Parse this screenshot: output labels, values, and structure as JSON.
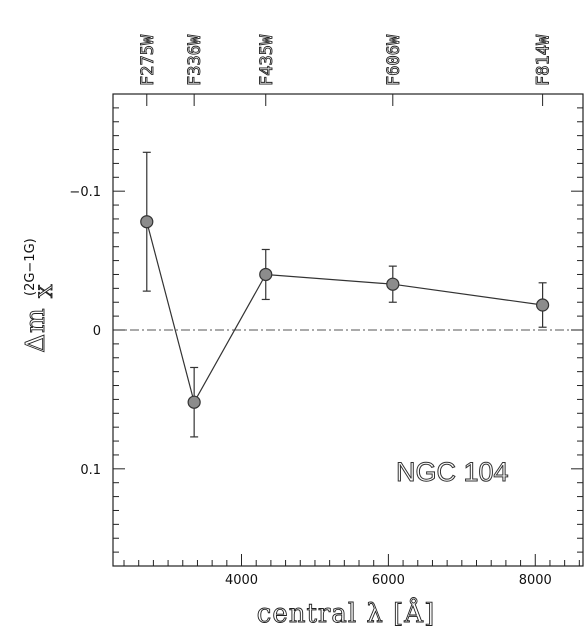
{
  "chart_data": {
    "type": "scatter",
    "title": "",
    "xlabel": "central λ [Å]",
    "ylabel_main": "Δm",
    "ylabel_sub": "X",
    "ylabel_sup": "(2G−1G)",
    "xlim": [
      2250,
      8650
    ],
    "ylim": [
      0.17,
      -0.17
    ],
    "y_inverted": true,
    "x_ticks": [
      4000,
      6000,
      8000
    ],
    "x_tick_labels": [
      "4000",
      "6000",
      "8000"
    ],
    "y_ticks": [
      -0.1,
      0,
      0.1
    ],
    "y_tick_labels": [
      "−0.1",
      "0",
      "0.1"
    ],
    "reference_line": {
      "y": 0,
      "style": "dash-dot"
    },
    "annotation": "NGC 104",
    "series": [
      {
        "points": [
          {
            "filter": "F275W",
            "x": 2710,
            "y": -0.078,
            "err": 0.05
          },
          {
            "filter": "F336W",
            "x": 3355,
            "y": 0.052,
            "err": 0.025
          },
          {
            "filter": "F435W",
            "x": 4330,
            "y": -0.04,
            "err": 0.018
          },
          {
            "filter": "F606W",
            "x": 6060,
            "y": -0.033,
            "err": 0.013
          },
          {
            "filter": "F814W",
            "x": 8100,
            "y": -0.018,
            "err": 0.016
          }
        ]
      }
    ],
    "colors": {
      "marker": "#8c8c8c",
      "line": "#333333",
      "refline": "#555555"
    }
  }
}
